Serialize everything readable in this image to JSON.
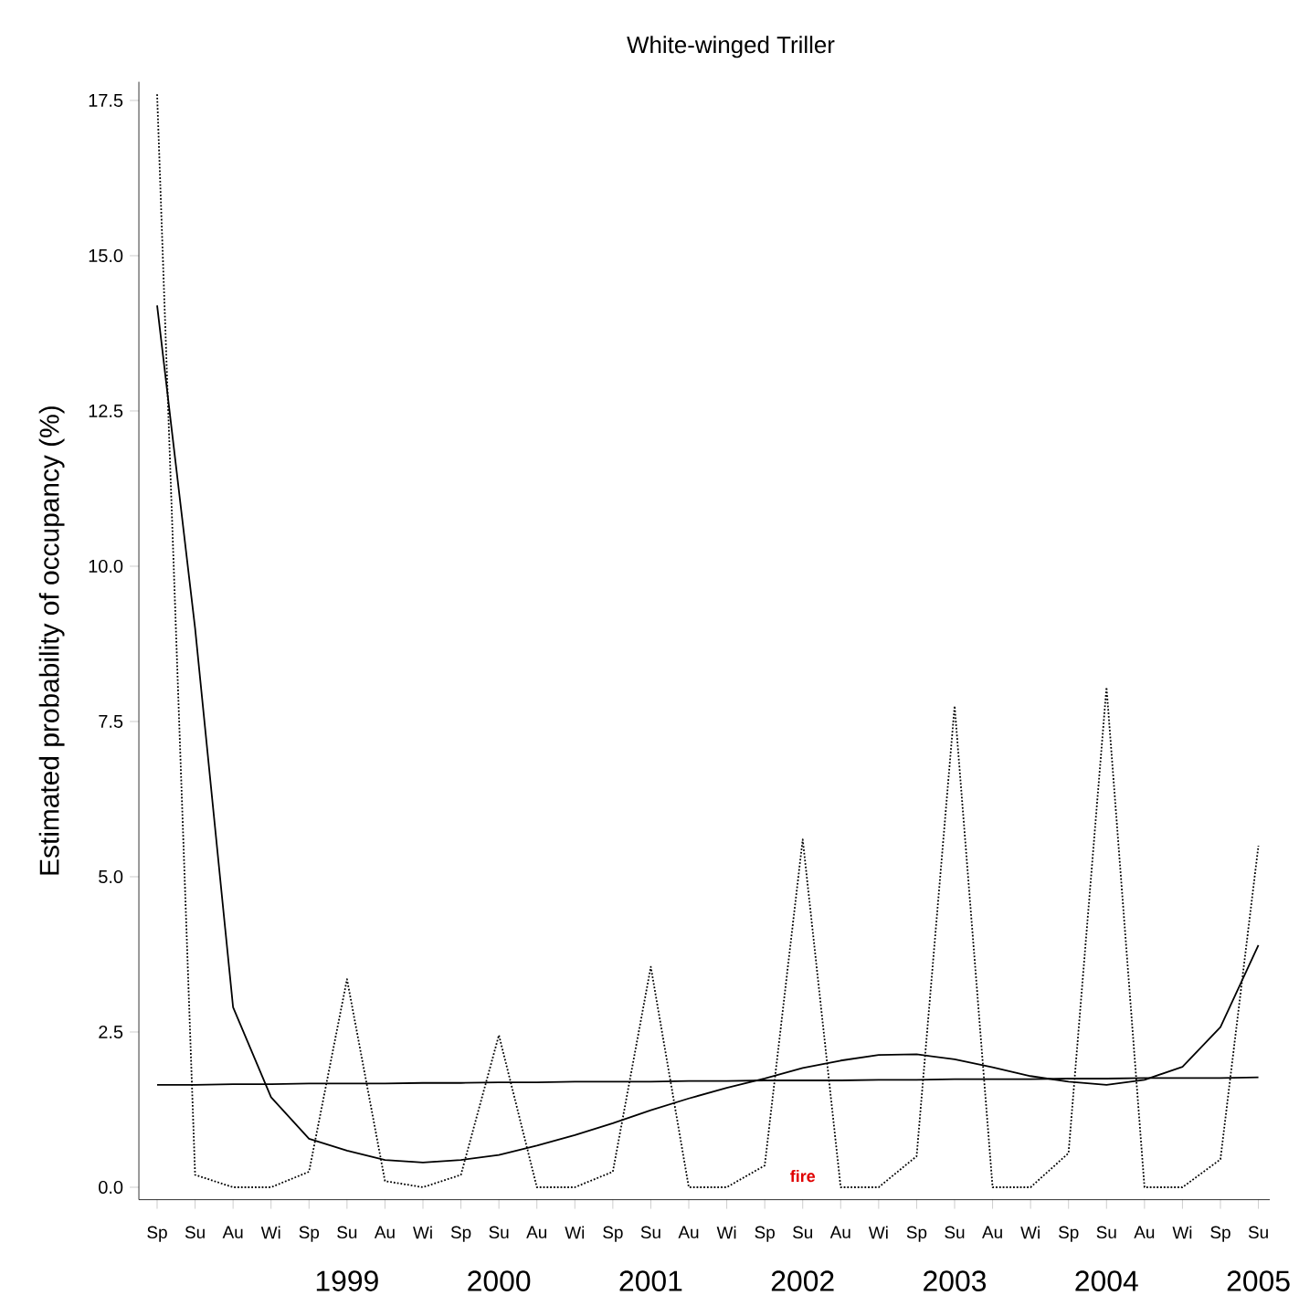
{
  "chart_data": {
    "type": "line",
    "title": "White-winged Triller",
    "ylabel": "Estimated probability of occupancy (%)",
    "categories": [
      "Sp",
      "Su",
      "Au",
      "Wi",
      "Sp",
      "Su",
      "Au",
      "Wi",
      "Sp",
      "Su",
      "Au",
      "Wi",
      "Sp",
      "Su",
      "Au",
      "Wi",
      "Sp",
      "Su",
      "Au",
      "Wi",
      "Sp",
      "Su",
      "Au",
      "Wi",
      "Sp",
      "Su",
      "Au",
      "Wi",
      "Sp",
      "Su"
    ],
    "series": [
      {
        "color": "#000000",
        "line_style": "dotted",
        "values": [
          17.6,
          0.2,
          0,
          0,
          0.25,
          3.35,
          0.1,
          0,
          0.2,
          2.45,
          0,
          0,
          0.25,
          3.55,
          0,
          0,
          0.35,
          5.6,
          0,
          0,
          0.5,
          7.75,
          0,
          0,
          0.55,
          8.05,
          0,
          0,
          0.45,
          5.5
        ]
      },
      {
        "color": "#000000",
        "line_style": "solid",
        "values": [
          14.2,
          9.0,
          2.9,
          1.45,
          0.78,
          0.59,
          0.44,
          0.4,
          0.44,
          0.52,
          0.67,
          0.84,
          1.03,
          1.24,
          1.43,
          1.6,
          1.75,
          1.92,
          2.04,
          2.13,
          2.14,
          2.06,
          1.93,
          1.79,
          1.7,
          1.65,
          1.73,
          1.94,
          2.58,
          3.9
        ]
      },
      {
        "color": "#000000",
        "line_style": "solid",
        "values": [
          1.65,
          1.65,
          1.66,
          1.66,
          1.67,
          1.67,
          1.67,
          1.68,
          1.68,
          1.69,
          1.69,
          1.7,
          1.7,
          1.7,
          1.71,
          1.71,
          1.72,
          1.72,
          1.72,
          1.73,
          1.73,
          1.74,
          1.74,
          1.74,
          1.75,
          1.75,
          1.76,
          1.76,
          1.76,
          1.77
        ]
      }
    ],
    "ylim": [
      -0.2,
      17.8
    ],
    "yticks": [
      {
        "value": 0,
        "label": "0.0"
      },
      {
        "value": 2.5,
        "label": "2.5"
      },
      {
        "value": 5,
        "label": "5.0"
      },
      {
        "value": 7.5,
        "label": "7.5"
      },
      {
        "value": 10,
        "label": "10.0"
      },
      {
        "value": 12.5,
        "label": "12.5"
      },
      {
        "value": 15,
        "label": "15.0"
      },
      {
        "value": 17.5,
        "label": "17.5"
      }
    ],
    "annotations": [
      "1999",
      "2000",
      "2001",
      "2002",
      "2003",
      "2004",
      "2005",
      "fire"
    ]
  }
}
